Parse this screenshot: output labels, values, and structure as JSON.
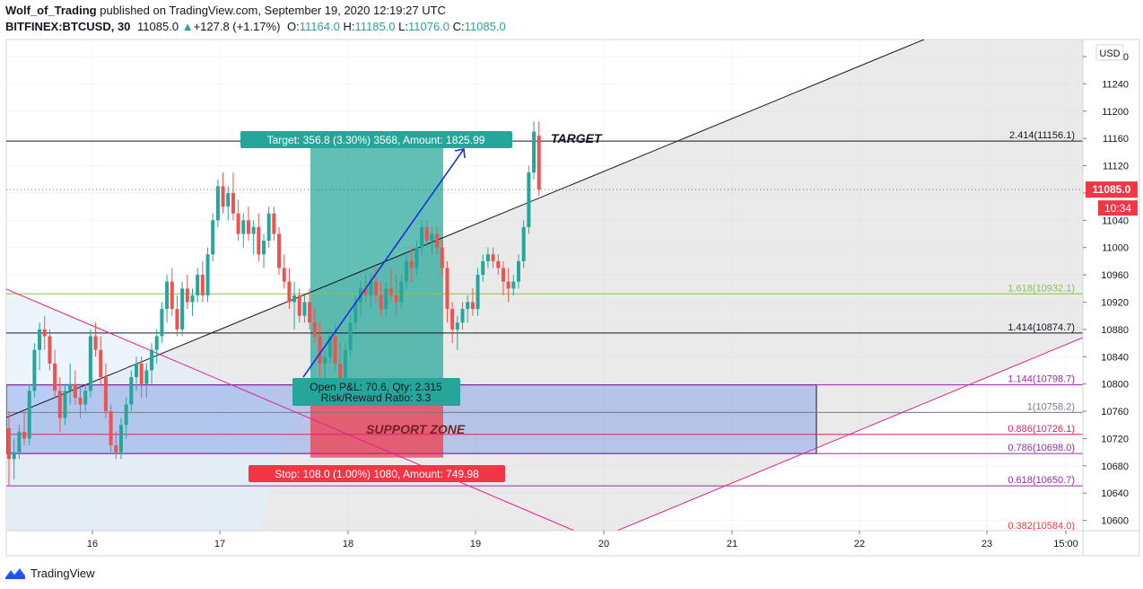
{
  "header": {
    "author": "Wolf_of_Trading",
    "published": "published on TradingView.com, September 19, 2020 12:19:27 UTC",
    "symbol": "BITFINEX:BTCUSD, 30",
    "last": "11085.0",
    "change_arrow": "▲",
    "change": "+127.8 (+1.17%)",
    "o_label": "O:",
    "o": "11164.0",
    "h_label": "H:",
    "h": "11185.0",
    "l_label": "L:",
    "l": "11076.0",
    "c_label": "C:",
    "c": "11085.0"
  },
  "footer": {
    "brand": "TradingView",
    "logo_icon": "tradingview-logo-icon"
  },
  "chart_data": {
    "type": "candlestick",
    "currency_button": "USD",
    "x_tick_labels": [
      "16",
      "17",
      "18",
      "19",
      "20",
      "21",
      "22",
      "23",
      "15:00"
    ],
    "y_ticks": [
      10600,
      10640,
      10680,
      10720,
      10760,
      10800,
      10840,
      10880,
      10920,
      10960,
      11000,
      11040,
      11080,
      11120,
      11160,
      11200,
      11240,
      11280
    ],
    "ylim": [
      10585,
      11305
    ],
    "last_price": {
      "value": 11085.0,
      "label": "11085.0",
      "countdown": "10:34",
      "color": "#f23645"
    },
    "fib_levels": [
      {
        "ratio": "2.414",
        "price": 11156.1,
        "label": "2.414(11156.1)",
        "color": "#131722"
      },
      {
        "ratio": "1.618",
        "price": 10932.1,
        "label": "1.618(10932.1)",
        "color": "#8bc34a"
      },
      {
        "ratio": "1.414",
        "price": 10874.7,
        "label": "1.414(10874.7)",
        "color": "#131722"
      },
      {
        "ratio": "1.144",
        "price": 10798.7,
        "label": "1.144(10798.7)",
        "color": "#9c27b0"
      },
      {
        "ratio": "1",
        "price": 10758.2,
        "label": "1(10758.2)",
        "color": "#787b86"
      },
      {
        "ratio": "0.886",
        "price": 10726.1,
        "label": "0.886(10726.1)",
        "color": "#e91e63"
      },
      {
        "ratio": "0.786",
        "price": 10698.0,
        "label": "0.786(10698.0)",
        "color": "#9c27b0"
      },
      {
        "ratio": "0.618",
        "price": 10650.7,
        "label": "0.618(10650.7)",
        "color": "#9c27b0"
      },
      {
        "ratio": "0.382",
        "price": 10584.0,
        "label": "0.382(10584.0)",
        "color": "#f23645"
      }
    ],
    "position": {
      "target_label": "Target: 356.8 (3.30%) 3568, Amount: 1825.99",
      "stop_label": "Stop: 108.0 (1.00%) 1080, Amount: 749.98",
      "open_label_1": "Open P&L: 70.6, Qty: 2.315",
      "open_label_2": "Risk/Reward Ratio: 3.3",
      "entry": 10800.0,
      "target": 11156.8,
      "stop": 10692.0,
      "profit_color": "#26a69a",
      "loss_color": "#f23645"
    },
    "annotations": {
      "target_text": "TARGET",
      "support_text": "SUPPORT ZONE"
    },
    "support_zone": {
      "top": 10798.7,
      "bottom": 10698.0,
      "color": "#3f6ee0"
    },
    "candles": [
      [
        10735,
        10760,
        10650,
        10690
      ],
      [
        10690,
        10720,
        10660,
        10700
      ],
      [
        10700,
        10740,
        10690,
        10730
      ],
      [
        10730,
        10760,
        10710,
        10720
      ],
      [
        10720,
        10800,
        10710,
        10790
      ],
      [
        10790,
        10860,
        10780,
        10850
      ],
      [
        10850,
        10890,
        10820,
        10880
      ],
      [
        10880,
        10900,
        10850,
        10870
      ],
      [
        10870,
        10880,
        10820,
        10830
      ],
      [
        10830,
        10850,
        10780,
        10790
      ],
      [
        10790,
        10810,
        10730,
        10750
      ],
      [
        10750,
        10800,
        10740,
        10790
      ],
      [
        10790,
        10830,
        10770,
        10800
      ],
      [
        10800,
        10820,
        10770,
        10780
      ],
      [
        10780,
        10800,
        10750,
        10770
      ],
      [
        10770,
        10800,
        10760,
        10790
      ],
      [
        10790,
        10880,
        10780,
        10870
      ],
      [
        10870,
        10890,
        10840,
        10850
      ],
      [
        10850,
        10870,
        10800,
        10810
      ],
      [
        10810,
        10830,
        10750,
        10760
      ],
      [
        10760,
        10770,
        10700,
        10710
      ],
      [
        10710,
        10730,
        10690,
        10700
      ],
      [
        10700,
        10750,
        10690,
        10740
      ],
      [
        10740,
        10780,
        10720,
        10770
      ],
      [
        10770,
        10820,
        10760,
        10810
      ],
      [
        10810,
        10840,
        10790,
        10830
      ],
      [
        10830,
        10840,
        10780,
        10800
      ],
      [
        10800,
        10830,
        10780,
        10820
      ],
      [
        10820,
        10860,
        10800,
        10850
      ],
      [
        10850,
        10880,
        10830,
        10870
      ],
      [
        10870,
        10920,
        10860,
        10910
      ],
      [
        10910,
        10960,
        10890,
        10950
      ],
      [
        10950,
        10970,
        10900,
        10910
      ],
      [
        10910,
        10930,
        10870,
        10880
      ],
      [
        10880,
        10950,
        10870,
        10940
      ],
      [
        10940,
        10960,
        10910,
        10920
      ],
      [
        10920,
        10940,
        10900,
        10930
      ],
      [
        10930,
        10970,
        10920,
        10960
      ],
      [
        10960,
        10980,
        10920,
        10930
      ],
      [
        10930,
        11000,
        10920,
        10990
      ],
      [
        10990,
        11050,
        10980,
        11040
      ],
      [
        11040,
        11100,
        11030,
        11090
      ],
      [
        11090,
        11110,
        11050,
        11060
      ],
      [
        11060,
        11090,
        11040,
        11080
      ],
      [
        11080,
        11110,
        11040,
        11050
      ],
      [
        11050,
        11070,
        11010,
        11020
      ],
      [
        11020,
        11050,
        11000,
        11040
      ],
      [
        11040,
        11060,
        11010,
        11020
      ],
      [
        11020,
        11040,
        10990,
        11030
      ],
      [
        11030,
        11050,
        10980,
        10990
      ],
      [
        10990,
        11020,
        10970,
        11010
      ],
      [
        11010,
        11060,
        11000,
        11050
      ],
      [
        11050,
        11060,
        11010,
        11020
      ],
      [
        11020,
        11030,
        10960,
        10970
      ],
      [
        10970,
        10990,
        10940,
        10950
      ],
      [
        10950,
        10970,
        10910,
        10920
      ],
      [
        10920,
        10950,
        10880,
        10930
      ],
      [
        10930,
        10940,
        10890,
        10900
      ],
      [
        10900,
        10930,
        10890,
        10920
      ],
      [
        10920,
        10940,
        10880,
        10890
      ],
      [
        10890,
        10910,
        10860,
        10870
      ],
      [
        10870,
        10890,
        10810,
        10830
      ],
      [
        10830,
        10850,
        10800,
        10840
      ],
      [
        10840,
        10880,
        10830,
        10870
      ],
      [
        10870,
        10890,
        10820,
        10830
      ],
      [
        10830,
        10860,
        10790,
        10800
      ],
      [
        10800,
        10860,
        10790,
        10850
      ],
      [
        10850,
        10900,
        10840,
        10890
      ],
      [
        10890,
        10930,
        10880,
        10920
      ],
      [
        10920,
        10950,
        10900,
        10940
      ],
      [
        10940,
        10960,
        10920,
        10930
      ],
      [
        10930,
        10960,
        10910,
        10950
      ],
      [
        10950,
        10970,
        10920,
        10930
      ],
      [
        10930,
        10950,
        10900,
        10910
      ],
      [
        10910,
        10950,
        10900,
        10940
      ],
      [
        10940,
        10970,
        10920,
        10930
      ],
      [
        10930,
        10960,
        10900,
        10920
      ],
      [
        10920,
        10960,
        10910,
        10950
      ],
      [
        10950,
        10990,
        10940,
        10980
      ],
      [
        10980,
        11000,
        10950,
        10970
      ],
      [
        10970,
        11010,
        10960,
        11000
      ],
      [
        11000,
        11040,
        10990,
        11030
      ],
      [
        11030,
        11040,
        11000,
        11010
      ],
      [
        11010,
        11030,
        10990,
        11020
      ],
      [
        11020,
        11030,
        10990,
        11000
      ],
      [
        11000,
        11010,
        10960,
        10970
      ],
      [
        10970,
        10980,
        10890,
        10910
      ],
      [
        10910,
        10920,
        10860,
        10880
      ],
      [
        10880,
        10900,
        10850,
        10890
      ],
      [
        10890,
        10920,
        10880,
        10910
      ],
      [
        10910,
        10930,
        10890,
        10920
      ],
      [
        10920,
        10940,
        10900,
        10910
      ],
      [
        10910,
        10970,
        10900,
        10960
      ],
      [
        10960,
        10990,
        10950,
        10980
      ],
      [
        10980,
        11000,
        10970,
        10990
      ],
      [
        10990,
        11000,
        10970,
        10980
      ],
      [
        10980,
        10990,
        10960,
        10970
      ],
      [
        10970,
        10980,
        10930,
        10950
      ],
      [
        10950,
        10970,
        10920,
        10940
      ],
      [
        10940,
        10960,
        10930,
        10950
      ],
      [
        10950,
        10990,
        10940,
        10980
      ],
      [
        10980,
        11040,
        10970,
        11030
      ],
      [
        11030,
        11120,
        11020,
        11110
      ],
      [
        11110,
        11185,
        11100,
        11170
      ],
      [
        11164,
        11185,
        11076,
        11085
      ]
    ]
  }
}
